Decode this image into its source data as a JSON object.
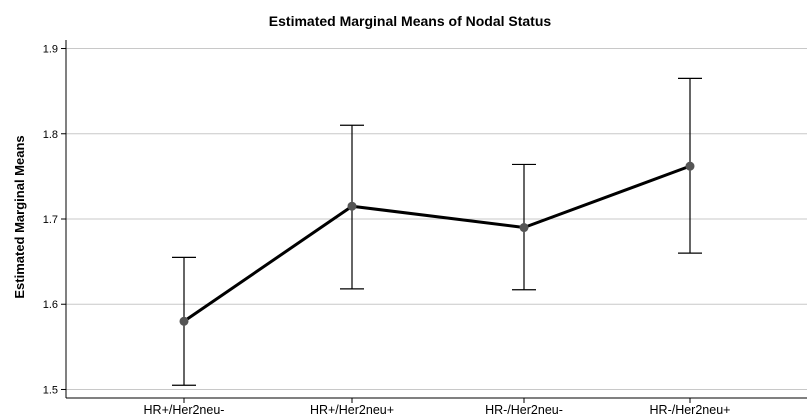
{
  "chart_data": {
    "type": "line",
    "title": "Estimated Marginal Means of Nodal Status",
    "xlabel": "",
    "ylabel": "Estimated Marginal Means",
    "categories": [
      "HR+/Her2neu-",
      "HR+/Her2neu+",
      "HR-/Her2neu-",
      "HR-/Her2neu+"
    ],
    "ylim": [
      1.49,
      1.91
    ],
    "yticks": [
      "1.5",
      "1.6",
      "1.7",
      "1.8",
      "1.9"
    ],
    "grid": true,
    "series": [
      {
        "values": [
          1.58,
          1.715,
          1.69,
          1.762
        ],
        "lower": [
          1.505,
          1.618,
          1.617,
          1.66
        ],
        "upper": [
          1.655,
          1.81,
          1.764,
          1.865
        ]
      }
    ],
    "colors": {
      "line": "#000000",
      "marker": "#555555",
      "errorbar": "#000000",
      "grid": "#c8c8c8",
      "axis": "#000000"
    }
  }
}
